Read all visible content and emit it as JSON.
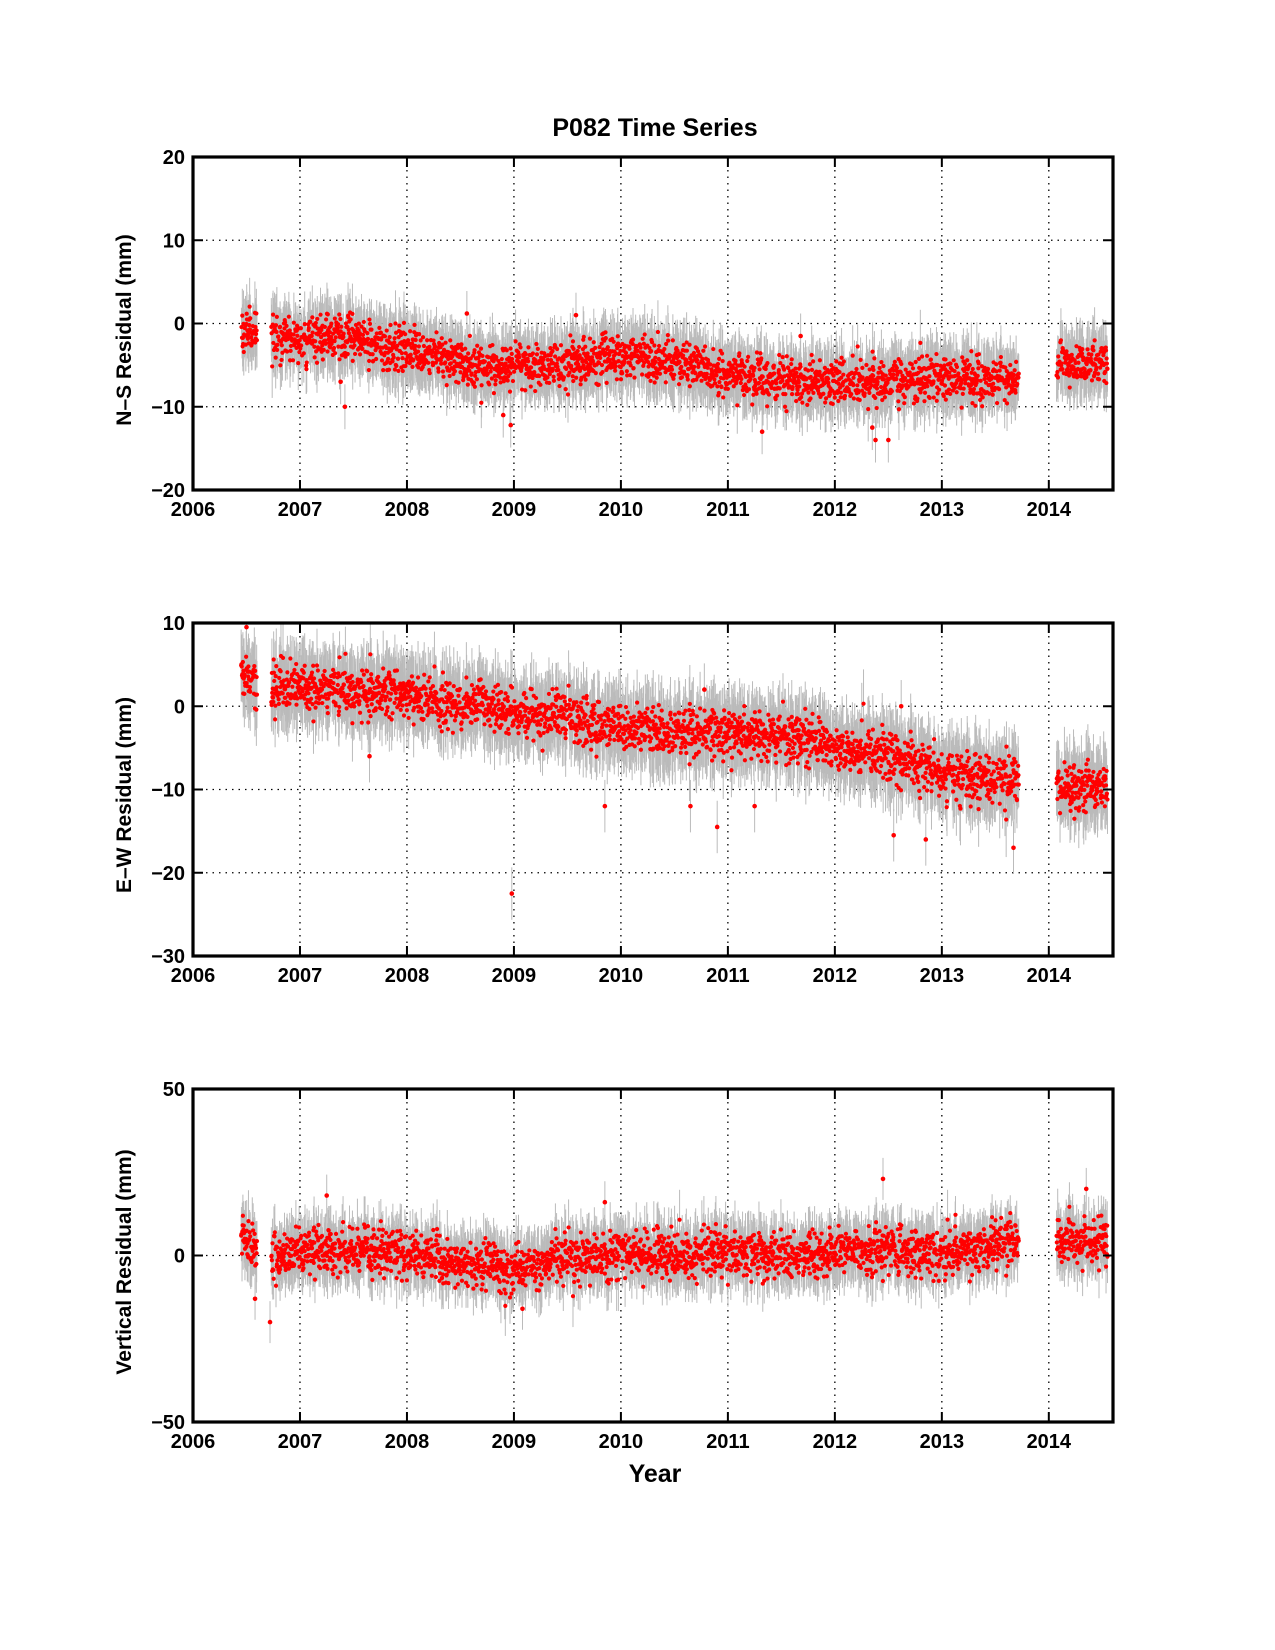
{
  "chart_data": [
    {
      "type": "scatter",
      "title": "P082 Time Series",
      "xlabel": "",
      "ylabel": "N–S Residual (mm)",
      "xlim": [
        2006,
        2014.6
      ],
      "ylim": [
        -20,
        20
      ],
      "xticks": [
        2006,
        2007,
        2008,
        2009,
        2010,
        2011,
        2012,
        2013,
        2014
      ],
      "yticks": [
        -20,
        -10,
        0,
        10,
        20
      ],
      "grid": "dotted",
      "point_color": "#ff0000",
      "errorbar_color": "#bbbbbb",
      "errorbar_halfwidth": 3,
      "gap": [
        2013.72,
        2014.07
      ],
      "trend": [
        [
          2006.45,
          -1
        ],
        [
          2006.7,
          -1.5
        ],
        [
          2007.0,
          -2
        ],
        [
          2007.5,
          -1.5
        ],
        [
          2007.7,
          -2.5
        ],
        [
          2008.0,
          -3
        ],
        [
          2008.5,
          -4.5
        ],
        [
          2008.8,
          -5.5
        ],
        [
          2009.0,
          -5
        ],
        [
          2009.5,
          -5
        ],
        [
          2010.0,
          -4
        ],
        [
          2010.5,
          -4.5
        ],
        [
          2011.0,
          -6
        ],
        [
          2011.5,
          -7
        ],
        [
          2012.0,
          -7
        ],
        [
          2012.5,
          -7
        ],
        [
          2013.0,
          -6.5
        ],
        [
          2013.7,
          -7
        ],
        [
          2014.1,
          -5
        ],
        [
          2014.55,
          -5
        ]
      ],
      "scatter_sd": 1.3,
      "outliers": [
        [
          2007.38,
          -7
        ],
        [
          2007.42,
          -10
        ],
        [
          2008.56,
          1.2
        ],
        [
          2008.9,
          -11
        ],
        [
          2008.97,
          -12.2
        ],
        [
          2009.58,
          1
        ],
        [
          2011.32,
          -13
        ],
        [
          2011.68,
          -1.5
        ],
        [
          2012.38,
          -14
        ],
        [
          2012.5,
          -14
        ],
        [
          2012.35,
          -12.5
        ]
      ]
    },
    {
      "type": "scatter",
      "title": "",
      "xlabel": "",
      "ylabel": "E–W Residual (mm)",
      "xlim": [
        2006,
        2014.6
      ],
      "ylim": [
        -30,
        10
      ],
      "xticks": [
        2006,
        2007,
        2008,
        2009,
        2010,
        2011,
        2012,
        2013,
        2014
      ],
      "yticks": [
        -30,
        -20,
        -10,
        0,
        10
      ],
      "grid": "dotted",
      "point_color": "#ff0000",
      "errorbar_color": "#bbbbbb",
      "errorbar_halfwidth": 3.5,
      "gap": [
        2013.72,
        2014.07
      ],
      "trend": [
        [
          2006.45,
          3.5
        ],
        [
          2006.7,
          2.5
        ],
        [
          2007.0,
          2.5
        ],
        [
          2007.5,
          2
        ],
        [
          2008.0,
          1.5
        ],
        [
          2008.3,
          0.5
        ],
        [
          2008.5,
          0
        ],
        [
          2008.6,
          1
        ],
        [
          2009.0,
          -1
        ],
        [
          2009.5,
          -1.5
        ],
        [
          2010.0,
          -2.5
        ],
        [
          2010.5,
          -3
        ],
        [
          2011.0,
          -3.5
        ],
        [
          2011.5,
          -3.5
        ],
        [
          2011.7,
          -3.5
        ],
        [
          2012.0,
          -5
        ],
        [
          2012.5,
          -6
        ],
        [
          2012.8,
          -7
        ],
        [
          2013.0,
          -8
        ],
        [
          2013.7,
          -9
        ],
        [
          2014.1,
          -10
        ],
        [
          2014.55,
          -10
        ]
      ],
      "scatter_sd": 1.4,
      "outliers": [
        [
          2006.5,
          9.5
        ],
        [
          2007.65,
          -6
        ],
        [
          2008.98,
          -22.5
        ],
        [
          2009.85,
          -12
        ],
        [
          2010.65,
          -12
        ],
        [
          2010.9,
          -14.5
        ],
        [
          2011.25,
          -12
        ],
        [
          2012.55,
          -15.5
        ],
        [
          2012.62,
          0
        ],
        [
          2012.85,
          -16
        ],
        [
          2013.67,
          -17
        ],
        [
          2010.78,
          2
        ]
      ]
    },
    {
      "type": "scatter",
      "title": "",
      "xlabel": "Year",
      "ylabel": "Vertical Residual (mm)",
      "xlim": [
        2006,
        2014.6
      ],
      "ylim": [
        -50,
        50
      ],
      "xticks": [
        2006,
        2007,
        2008,
        2009,
        2010,
        2011,
        2012,
        2013,
        2014
      ],
      "yticks": [
        -50,
        0,
        50
      ],
      "grid": "dotted",
      "point_color": "#ff0000",
      "errorbar_color": "#bbbbbb",
      "errorbar_halfwidth": 7,
      "gap": [
        2013.72,
        2014.07
      ],
      "trend": [
        [
          2006.45,
          4
        ],
        [
          2006.75,
          0
        ],
        [
          2007.0,
          1
        ],
        [
          2007.5,
          2
        ],
        [
          2008.0,
          0
        ],
        [
          2008.5,
          -2
        ],
        [
          2009.0,
          -4
        ],
        [
          2009.5,
          0
        ],
        [
          2010.0,
          1
        ],
        [
          2010.5,
          0
        ],
        [
          2011.0,
          1
        ],
        [
          2011.5,
          0
        ],
        [
          2012.0,
          1
        ],
        [
          2012.5,
          2
        ],
        [
          2013.0,
          1
        ],
        [
          2013.7,
          4
        ],
        [
          2014.1,
          5
        ],
        [
          2014.55,
          4
        ]
      ],
      "scatter_sd": 3.5,
      "outliers": [
        [
          2006.72,
          -20
        ],
        [
          2007.25,
          18
        ],
        [
          2009.08,
          -16
        ],
        [
          2009.85,
          16
        ],
        [
          2012.45,
          23
        ],
        [
          2014.35,
          20
        ],
        [
          2006.58,
          -13
        ]
      ]
    }
  ]
}
